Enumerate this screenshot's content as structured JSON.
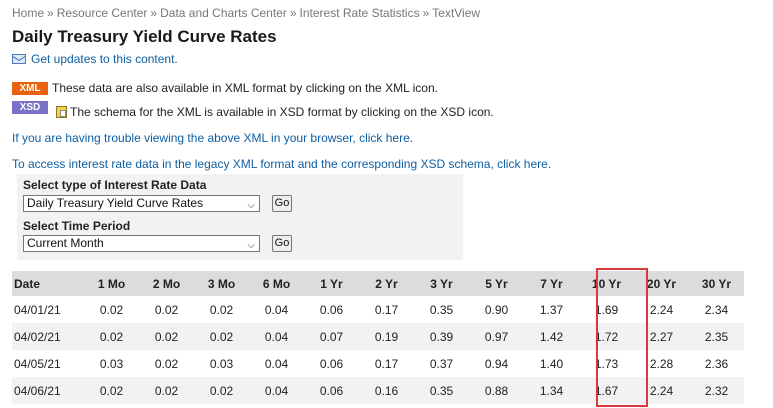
{
  "breadcrumb": {
    "items": [
      "Home",
      "Resource Center",
      "Data and Charts Center",
      "Interest Rate Statistics",
      "TextView"
    ],
    "separator": "»"
  },
  "page": {
    "title": "Daily Treasury Yield Curve Rates",
    "updates_link": "Get updates to this content."
  },
  "info": {
    "xml_badge": "XML",
    "xml_text": "These data are also available in XML format by clicking on the XML icon.",
    "xsd_badge": "XSD",
    "xsd_text": "The schema for the XML is available in XSD format by clicking on the XSD icon.",
    "trouble_link": "If you are having trouble viewing the above XML in your browser, click here.",
    "legacy_link": "To access interest rate data in the legacy XML format and the corresponding XSD schema, click here."
  },
  "filters": {
    "type_label": "Select type of Interest Rate Data",
    "type_value": "Daily Treasury Yield Curve Rates",
    "period_label": "Select Time Period",
    "period_value": "Current Month",
    "go_label": "Go"
  },
  "table": {
    "headers": [
      "Date",
      "1 Mo",
      "2 Mo",
      "3 Mo",
      "6 Mo",
      "1 Yr",
      "2 Yr",
      "3 Yr",
      "5 Yr",
      "7 Yr",
      "10 Yr",
      "20 Yr",
      "30 Yr"
    ],
    "rows": [
      [
        "04/01/21",
        "0.02",
        "0.02",
        "0.02",
        "0.04",
        "0.06",
        "0.17",
        "0.35",
        "0.90",
        "1.37",
        "1.69",
        "2.24",
        "2.34"
      ],
      [
        "04/02/21",
        "0.02",
        "0.02",
        "0.02",
        "0.04",
        "0.07",
        "0.19",
        "0.39",
        "0.97",
        "1.42",
        "1.72",
        "2.27",
        "2.35"
      ],
      [
        "04/05/21",
        "0.03",
        "0.02",
        "0.03",
        "0.04",
        "0.06",
        "0.17",
        "0.37",
        "0.94",
        "1.40",
        "1.73",
        "2.28",
        "2.36"
      ],
      [
        "04/06/21",
        "0.02",
        "0.02",
        "0.02",
        "0.04",
        "0.06",
        "0.16",
        "0.35",
        "0.88",
        "1.34",
        "1.67",
        "2.24",
        "2.32"
      ]
    ],
    "highlighted_column": "10 Yr"
  },
  "colors": {
    "link": "#0e5fa3",
    "xml_badge": "#e8620f",
    "xsd_badge": "#7b72c7",
    "highlight": "#d63a3a",
    "header_bg": "#dcdcdc"
  }
}
